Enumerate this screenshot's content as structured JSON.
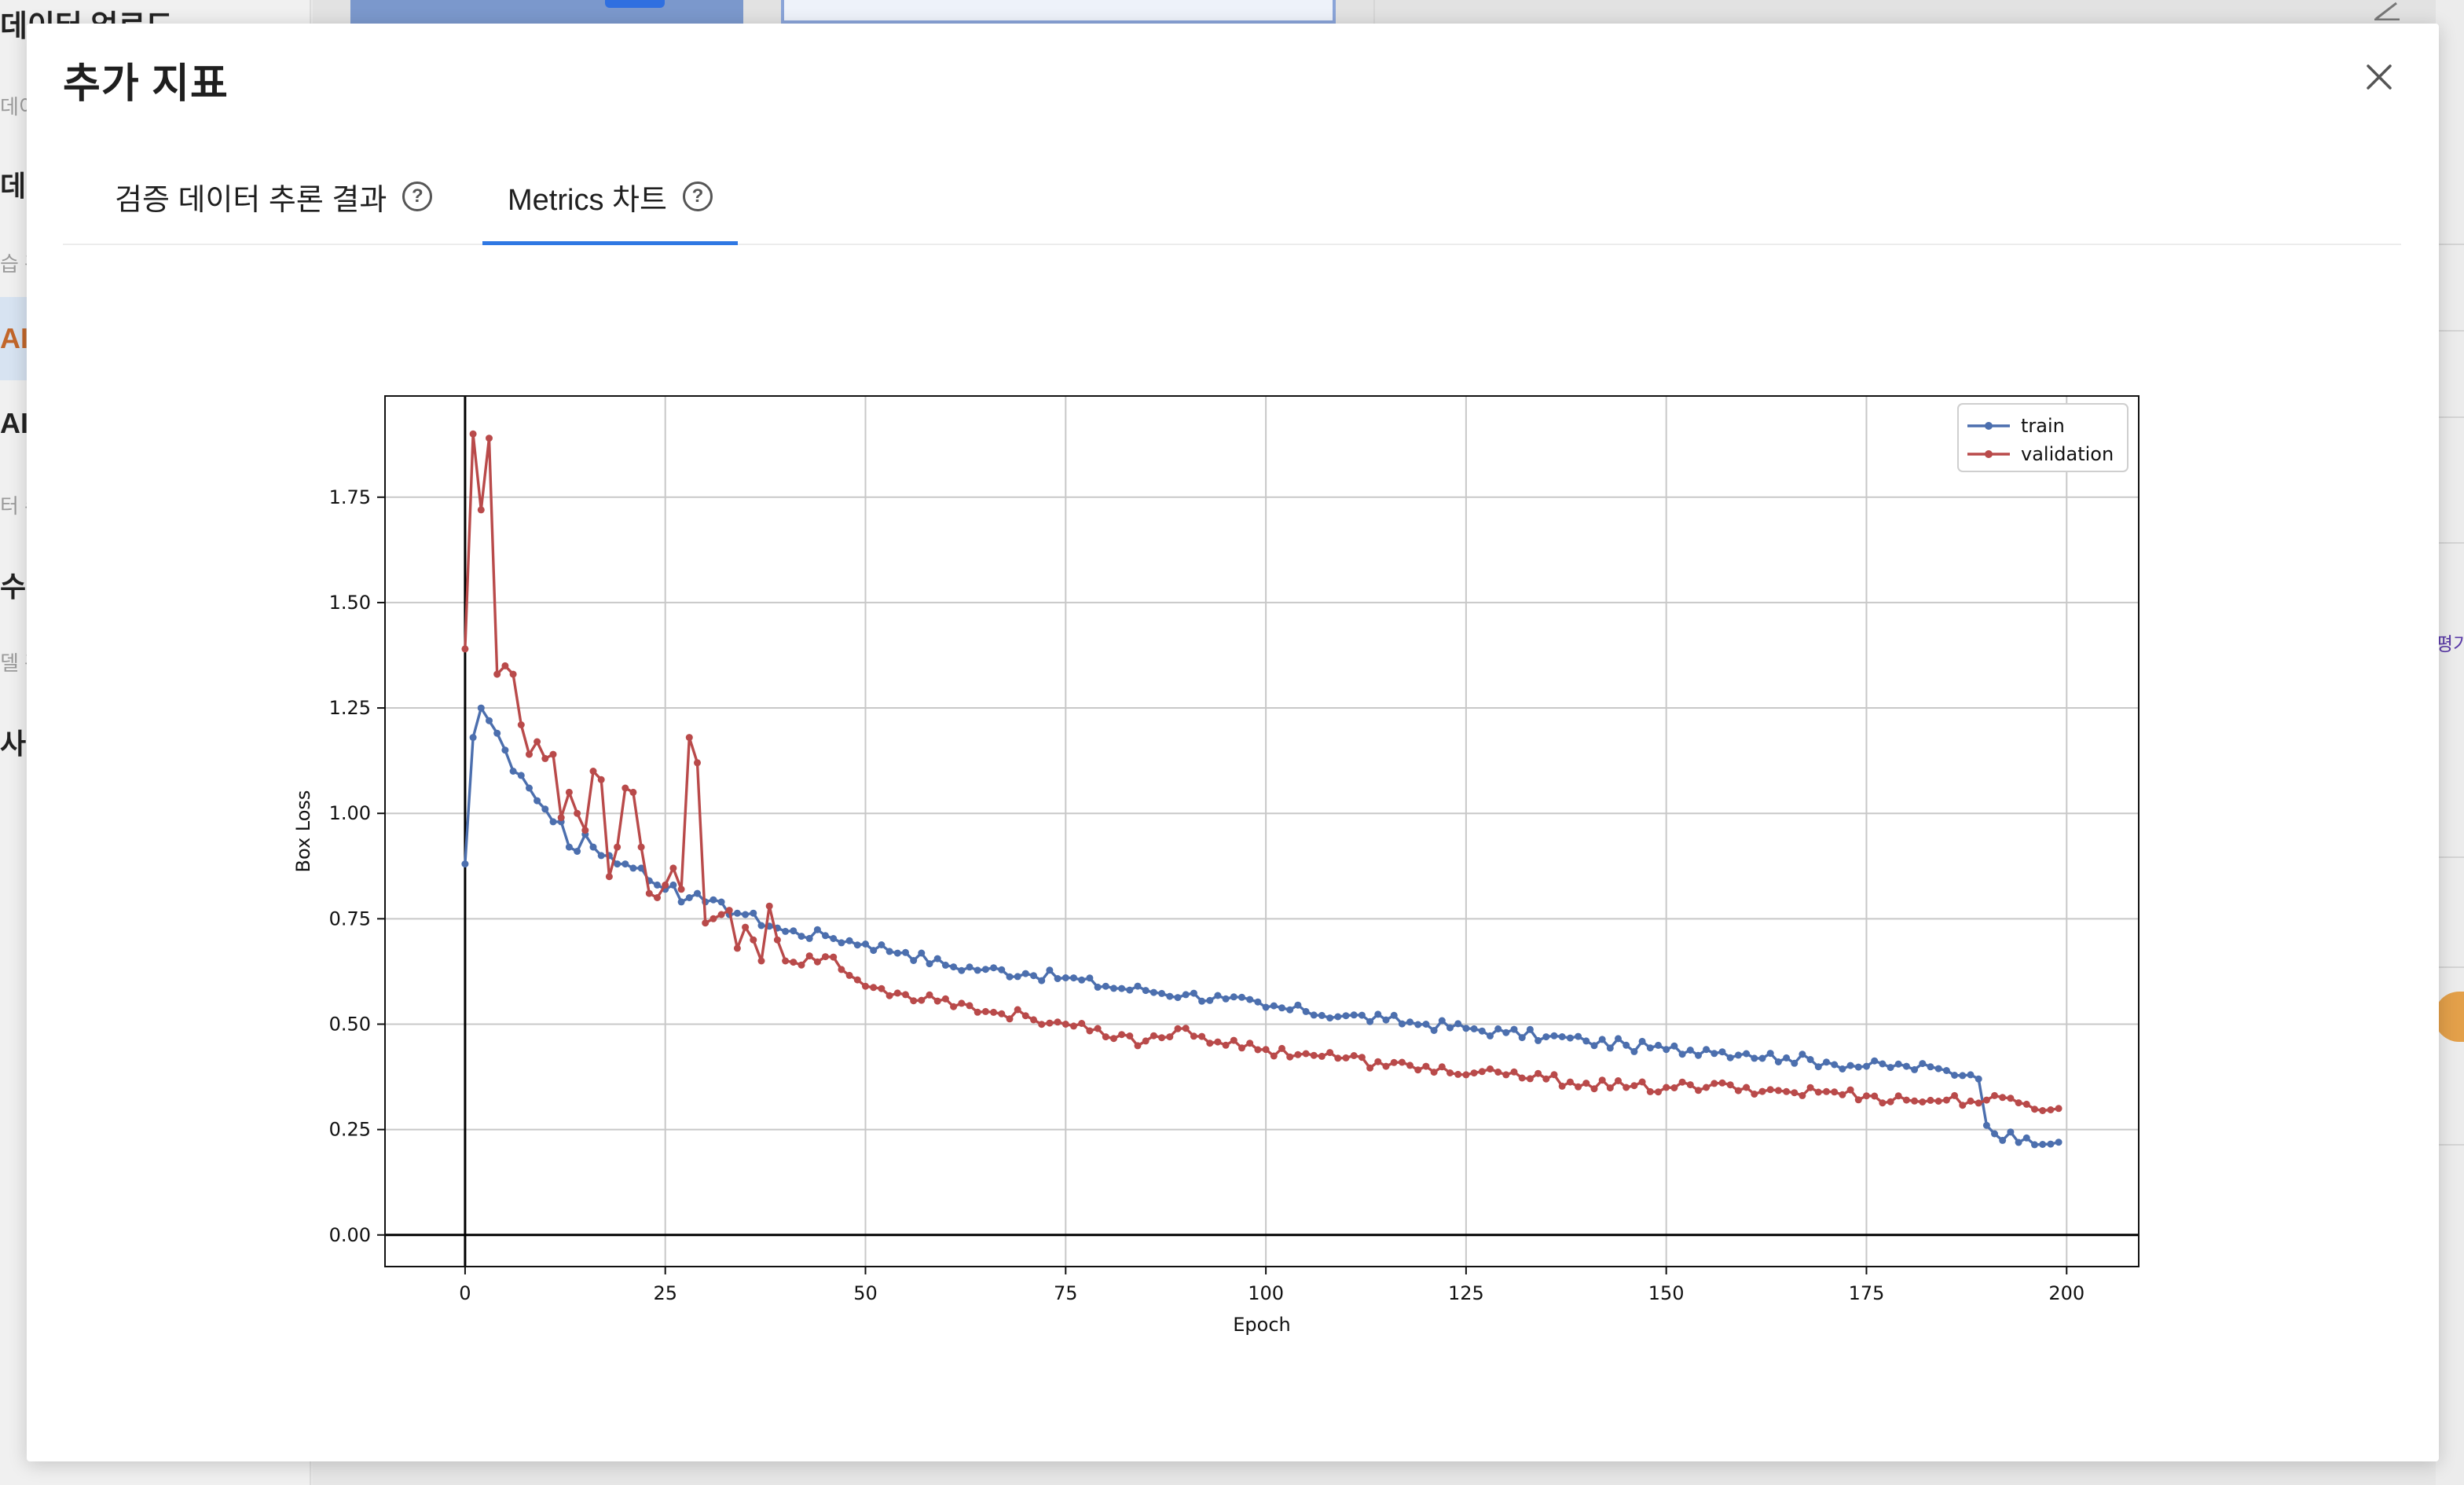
{
  "background": {
    "sidebar_fragments": [
      {
        "text": "데이터 업로드",
        "kind": "big"
      },
      {
        "text": "데이",
        "kind": "small"
      },
      {
        "text": "데이",
        "kind": "big"
      },
      {
        "text": "습 관",
        "kind": "small"
      },
      {
        "text": "AI",
        "kind": "active"
      },
      {
        "text": "AI",
        "kind": "big"
      },
      {
        "text": "터 수",
        "kind": "small"
      },
      {
        "text": "수집",
        "kind": "big"
      },
      {
        "text": "델 관",
        "kind": "small"
      },
      {
        "text": "사용",
        "kind": "big"
      }
    ],
    "right_fragment": "평가"
  },
  "modal": {
    "title": "추가 지표",
    "close_label": "×",
    "tabs": [
      {
        "label": "검증 데이터 추론 결과",
        "active": false,
        "help": "?"
      },
      {
        "label": "Metrics 차트",
        "active": true,
        "help": "?"
      }
    ]
  },
  "colors": {
    "train": "#4c6fae",
    "validation": "#b94a4a",
    "tab_active": "#2f78e3"
  },
  "chart_data": {
    "type": "line",
    "xlabel": "Epoch",
    "ylabel": "Box Loss",
    "xlim": [
      -10,
      209
    ],
    "ylim": [
      -0.075,
      1.99
    ],
    "xticks": [
      0,
      25,
      50,
      75,
      100,
      125,
      150,
      175,
      200
    ],
    "yticks": [
      0.0,
      0.25,
      0.5,
      0.75,
      1.0,
      1.25,
      1.5,
      1.75
    ],
    "ytick_labels": [
      "0.00",
      "0.25",
      "0.50",
      "0.75",
      "1.00",
      "1.25",
      "1.50",
      "1.75"
    ],
    "grid": true,
    "legend_position": "top-right",
    "series": [
      {
        "name": "train",
        "anchors": [
          [
            0,
            0.88
          ],
          [
            1,
            1.18
          ],
          [
            2,
            1.25
          ],
          [
            3,
            1.22
          ],
          [
            4,
            1.19
          ],
          [
            5,
            1.15
          ],
          [
            6,
            1.1
          ],
          [
            7,
            1.09
          ],
          [
            8,
            1.06
          ],
          [
            9,
            1.03
          ],
          [
            10,
            1.01
          ],
          [
            11,
            0.98
          ],
          [
            12,
            0.98
          ],
          [
            13,
            0.92
          ],
          [
            14,
            0.91
          ],
          [
            15,
            0.95
          ],
          [
            16,
            0.92
          ],
          [
            17,
            0.9
          ],
          [
            18,
            0.9
          ],
          [
            19,
            0.88
          ],
          [
            20,
            0.88
          ],
          [
            21,
            0.87
          ],
          [
            22,
            0.87
          ],
          [
            23,
            0.84
          ],
          [
            24,
            0.83
          ],
          [
            25,
            0.82
          ],
          [
            26,
            0.83
          ],
          [
            27,
            0.79
          ],
          [
            28,
            0.8
          ],
          [
            29,
            0.81
          ],
          [
            30,
            0.79
          ],
          [
            35,
            0.76
          ],
          [
            40,
            0.72
          ],
          [
            45,
            0.71
          ],
          [
            50,
            0.69
          ],
          [
            55,
            0.67
          ],
          [
            60,
            0.64
          ],
          [
            65,
            0.63
          ],
          [
            70,
            0.62
          ],
          [
            75,
            0.61
          ],
          [
            80,
            0.59
          ],
          [
            85,
            0.58
          ],
          [
            90,
            0.57
          ],
          [
            95,
            0.56
          ],
          [
            100,
            0.54
          ],
          [
            105,
            0.53
          ],
          [
            110,
            0.52
          ],
          [
            115,
            0.51
          ],
          [
            120,
            0.5
          ],
          [
            125,
            0.49
          ],
          [
            130,
            0.48
          ],
          [
            135,
            0.47
          ],
          [
            140,
            0.46
          ],
          [
            145,
            0.45
          ],
          [
            150,
            0.44
          ],
          [
            155,
            0.44
          ],
          [
            160,
            0.43
          ],
          [
            165,
            0.42
          ],
          [
            170,
            0.41
          ],
          [
            175,
            0.4
          ],
          [
            180,
            0.4
          ],
          [
            185,
            0.39
          ],
          [
            188,
            0.38
          ],
          [
            189,
            0.37
          ],
          [
            190,
            0.26
          ],
          [
            191,
            0.24
          ],
          [
            195,
            0.23
          ],
          [
            199,
            0.22
          ]
        ]
      },
      {
        "name": "validation",
        "anchors": [
          [
            0,
            1.39
          ],
          [
            1,
            1.9
          ],
          [
            2,
            1.72
          ],
          [
            3,
            1.89
          ],
          [
            4,
            1.33
          ],
          [
            5,
            1.35
          ],
          [
            6,
            1.33
          ],
          [
            7,
            1.21
          ],
          [
            8,
            1.14
          ],
          [
            9,
            1.17
          ],
          [
            10,
            1.13
          ],
          [
            11,
            1.14
          ],
          [
            12,
            0.99
          ],
          [
            13,
            1.05
          ],
          [
            14,
            1.0
          ],
          [
            15,
            0.96
          ],
          [
            16,
            1.1
          ],
          [
            17,
            1.08
          ],
          [
            18,
            0.85
          ],
          [
            19,
            0.92
          ],
          [
            20,
            1.06
          ],
          [
            21,
            1.05
          ],
          [
            22,
            0.92
          ],
          [
            23,
            0.81
          ],
          [
            24,
            0.8
          ],
          [
            25,
            0.83
          ],
          [
            26,
            0.87
          ],
          [
            27,
            0.82
          ],
          [
            28,
            1.18
          ],
          [
            29,
            1.12
          ],
          [
            30,
            0.74
          ],
          [
            31,
            0.75
          ],
          [
            32,
            0.76
          ],
          [
            33,
            0.77
          ],
          [
            34,
            0.68
          ],
          [
            35,
            0.73
          ],
          [
            36,
            0.7
          ],
          [
            37,
            0.65
          ],
          [
            38,
            0.78
          ],
          [
            39,
            0.7
          ],
          [
            40,
            0.65
          ],
          [
            45,
            0.66
          ],
          [
            50,
            0.59
          ],
          [
            55,
            0.57
          ],
          [
            60,
            0.56
          ],
          [
            65,
            0.53
          ],
          [
            70,
            0.52
          ],
          [
            75,
            0.5
          ],
          [
            80,
            0.47
          ],
          [
            85,
            0.46
          ],
          [
            90,
            0.49
          ],
          [
            95,
            0.45
          ],
          [
            100,
            0.44
          ],
          [
            105,
            0.43
          ],
          [
            110,
            0.42
          ],
          [
            115,
            0.4
          ],
          [
            120,
            0.4
          ],
          [
            125,
            0.38
          ],
          [
            130,
            0.38
          ],
          [
            135,
            0.37
          ],
          [
            140,
            0.36
          ],
          [
            145,
            0.35
          ],
          [
            150,
            0.35
          ],
          [
            155,
            0.35
          ],
          [
            160,
            0.35
          ],
          [
            165,
            0.34
          ],
          [
            170,
            0.34
          ],
          [
            175,
            0.33
          ],
          [
            180,
            0.32
          ],
          [
            185,
            0.32
          ],
          [
            190,
            0.32
          ],
          [
            195,
            0.31
          ],
          [
            199,
            0.3
          ]
        ]
      }
    ]
  }
}
